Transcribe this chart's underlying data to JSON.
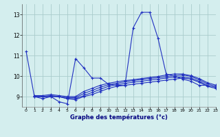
{
  "xlabel": "Graphe des températures (°c)",
  "bg_color": "#d4eeee",
  "line_color": "#2030c0",
  "grid_color": "#aacccc",
  "xlim": [
    -0.5,
    23
  ],
  "ylim": [
    8.5,
    13.5
  ],
  "yticks": [
    9,
    10,
    11,
    12,
    13
  ],
  "xticks": [
    0,
    1,
    2,
    3,
    4,
    5,
    6,
    7,
    8,
    9,
    10,
    11,
    12,
    13,
    14,
    15,
    16,
    17,
    18,
    19,
    20,
    21,
    22,
    23
  ],
  "series": [
    {
      "x": [
        0,
        1,
        2,
        3,
        4,
        5,
        6,
        7,
        8,
        9,
        10,
        11,
        12,
        13,
        14,
        15,
        16,
        17,
        18,
        19,
        20,
        21,
        22
      ],
      "y": [
        11.2,
        9.0,
        8.9,
        9.0,
        8.75,
        8.65,
        10.85,
        10.4,
        9.9,
        9.9,
        9.6,
        9.55,
        9.55,
        12.35,
        13.1,
        13.1,
        11.85,
        10.1,
        10.0,
        9.85,
        9.75,
        9.55,
        9.55
      ]
    },
    {
      "x": [
        1,
        2,
        3,
        4,
        5,
        6,
        7,
        8,
        9,
        10,
        11,
        12,
        13,
        14,
        15,
        16,
        17,
        18,
        19,
        20,
        21,
        22,
        23
      ],
      "y": [
        9.0,
        9.0,
        9.0,
        9.0,
        8.9,
        8.85,
        9.0,
        9.1,
        9.25,
        9.4,
        9.5,
        9.55,
        9.6,
        9.65,
        9.7,
        9.75,
        9.8,
        9.85,
        9.9,
        9.85,
        9.7,
        9.5,
        9.4
      ]
    },
    {
      "x": [
        1,
        2,
        3,
        4,
        5,
        6,
        7,
        8,
        9,
        10,
        11,
        12,
        13,
        14,
        15,
        16,
        17,
        18,
        19,
        20,
        21,
        22,
        23
      ],
      "y": [
        9.0,
        9.0,
        9.0,
        9.0,
        8.9,
        8.9,
        9.05,
        9.2,
        9.35,
        9.5,
        9.58,
        9.64,
        9.7,
        9.75,
        9.8,
        9.85,
        9.9,
        9.95,
        9.95,
        9.9,
        9.75,
        9.55,
        9.45
      ]
    },
    {
      "x": [
        1,
        2,
        3,
        4,
        5,
        6,
        7,
        8,
        9,
        10,
        11,
        12,
        13,
        14,
        15,
        16,
        17,
        18,
        19,
        20,
        21,
        22,
        23
      ],
      "y": [
        9.0,
        9.0,
        9.05,
        9.0,
        8.95,
        8.95,
        9.15,
        9.3,
        9.45,
        9.58,
        9.65,
        9.72,
        9.78,
        9.83,
        9.88,
        9.92,
        9.97,
        10.02,
        10.05,
        9.98,
        9.82,
        9.62,
        9.5
      ]
    },
    {
      "x": [
        1,
        2,
        3,
        4,
        5,
        6,
        7,
        8,
        9,
        10,
        11,
        12,
        13,
        14,
        15,
        16,
        17,
        18,
        19,
        20,
        21,
        22,
        23
      ],
      "y": [
        9.05,
        9.05,
        9.1,
        9.05,
        9.0,
        9.0,
        9.25,
        9.4,
        9.55,
        9.65,
        9.72,
        9.78,
        9.82,
        9.88,
        9.93,
        9.98,
        10.05,
        10.1,
        10.1,
        10.02,
        9.88,
        9.68,
        9.56
      ]
    }
  ]
}
